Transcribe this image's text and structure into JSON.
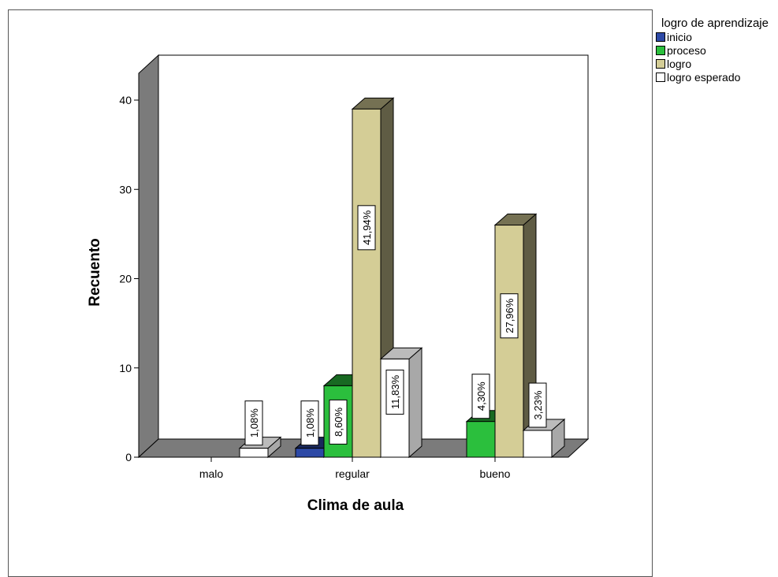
{
  "legend": {
    "title": "logro de aprendizaje",
    "items": [
      {
        "label": "inicio",
        "color": "#2d49a6"
      },
      {
        "label": "proceso",
        "color": "#2bbf3d"
      },
      {
        "label": "logro",
        "color": "#d4cd96"
      },
      {
        "label": "logro esperado",
        "color": "#ffffff"
      }
    ]
  },
  "chart_data": {
    "type": "bar",
    "xlabel": "Clima de aula",
    "ylabel": "Recuento",
    "categories": [
      "malo",
      "regular",
      "bueno"
    ],
    "ylim": [
      0,
      43
    ],
    "yticks": [
      0,
      10,
      20,
      30,
      40
    ],
    "series": [
      {
        "name": "inicio",
        "color": "#2d49a6",
        "values": [
          0,
          1,
          0
        ],
        "labels": [
          "",
          "1,08%",
          ""
        ]
      },
      {
        "name": "proceso",
        "color": "#2bbf3d",
        "values": [
          0,
          8,
          4
        ],
        "labels": [
          "",
          "8,60%",
          "4,30%"
        ]
      },
      {
        "name": "logro",
        "color": "#d4cd96",
        "values": [
          0,
          39,
          26
        ],
        "labels": [
          "",
          "41,94%",
          "27,96%"
        ]
      },
      {
        "name": "logro esperado",
        "color": "#ffffff",
        "values": [
          1,
          11,
          3
        ],
        "labels": [
          "1,08%",
          "11,83%",
          "3,23%"
        ]
      }
    ]
  }
}
